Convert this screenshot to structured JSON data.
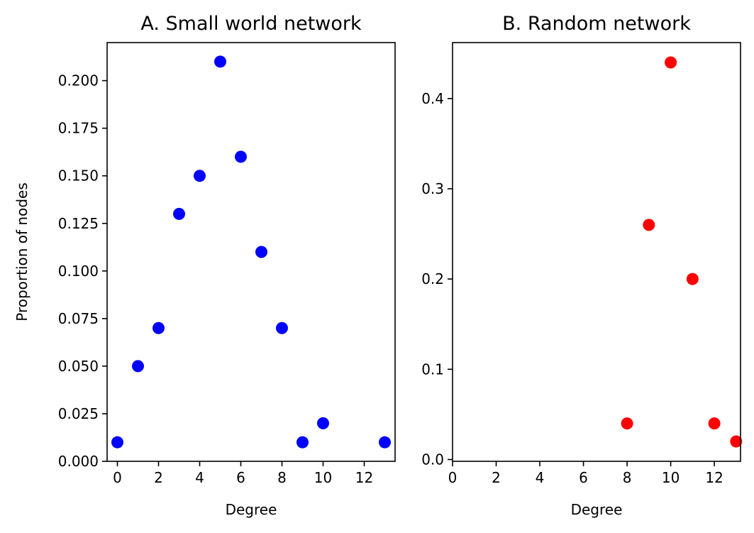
{
  "chart_data": [
    {
      "type": "scatter",
      "title": "A. Small world network",
      "xlabel": "Degree",
      "ylabel": "Proportion of nodes",
      "xlim": [
        -0.5,
        13.5
      ],
      "ylim": [
        0,
        0.22
      ],
      "xticks": [
        0,
        2,
        4,
        6,
        8,
        10,
        12
      ],
      "xtick_labels": [
        "0",
        "2",
        "4",
        "6",
        "8",
        "10",
        "12"
      ],
      "yticks": [
        0,
        0.025,
        0.05,
        0.075,
        0.1,
        0.125,
        0.15,
        0.175,
        0.2
      ],
      "ytick_labels": [
        "0.000",
        "0.025",
        "0.050",
        "0.075",
        "0.100",
        "0.125",
        "0.150",
        "0.175",
        "0.200"
      ],
      "grid": false,
      "color": "#0000ff",
      "x": [
        0,
        1,
        2,
        3,
        4,
        5,
        6,
        7,
        8,
        9,
        10,
        13
      ],
      "y": [
        0.01,
        0.05,
        0.07,
        0.13,
        0.15,
        0.21,
        0.16,
        0.11,
        0.07,
        0.01,
        0.02,
        0.01
      ]
    },
    {
      "type": "scatter",
      "title": "B. Random network",
      "xlabel": "Degree",
      "ylabel": "",
      "xlim": [
        0,
        13.2
      ],
      "ylim": [
        -0.002,
        0.462
      ],
      "xticks": [
        0,
        2,
        4,
        6,
        8,
        10,
        12
      ],
      "xtick_labels": [
        "0",
        "2",
        "4",
        "6",
        "8",
        "10",
        "12"
      ],
      "yticks": [
        0,
        0.1,
        0.2,
        0.3,
        0.4
      ],
      "ytick_labels": [
        "0.0",
        "0.1",
        "0.2",
        "0.3",
        "0.4"
      ],
      "grid": false,
      "color": "#ff0000",
      "x": [
        8,
        9,
        10,
        11,
        12,
        13
      ],
      "y": [
        0.04,
        0.26,
        0.44,
        0.2,
        0.04,
        0.02
      ]
    }
  ]
}
